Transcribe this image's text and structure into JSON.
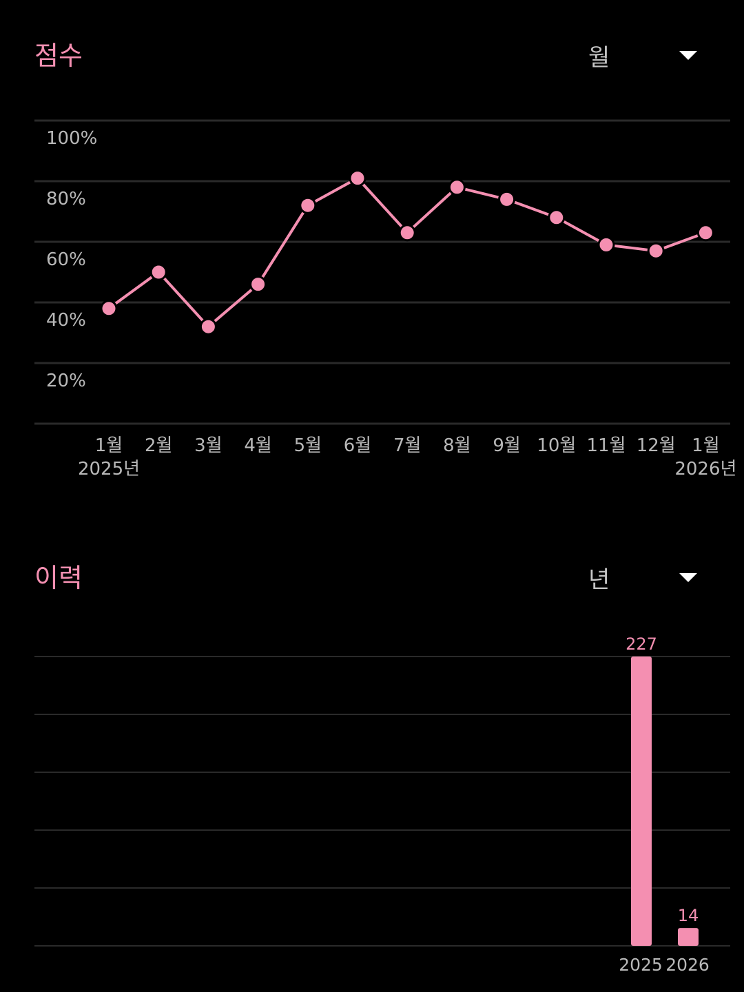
{
  "score_section": {
    "title": "점수",
    "period_selected": "월",
    "dropdown_icon": "triangle-down-icon"
  },
  "history_section": {
    "title": "이력",
    "period_selected": "년",
    "dropdown_icon": "triangle-down-icon"
  },
  "colors": {
    "accent": "#f48fb1",
    "background": "#000000",
    "grid": "#2a2a2a",
    "text_secondary": "#b8b8b8"
  },
  "chart_data": [
    {
      "type": "line",
      "title": "점수",
      "y_ticks": [
        "100%",
        "80%",
        "60%",
        "40%",
        "20%"
      ],
      "ylim": [
        0,
        100
      ],
      "categories": [
        "1월",
        "2월",
        "3월",
        "4월",
        "5월",
        "6월",
        "7월",
        "8월",
        "9월",
        "10월",
        "11월",
        "12월",
        "1월"
      ],
      "year_labels": [
        {
          "index": 0,
          "label": "2025년"
        },
        {
          "index": 12,
          "label": "2026년"
        }
      ],
      "values": [
        38,
        50,
        32,
        46,
        72,
        81,
        63,
        78,
        74,
        68,
        59,
        57,
        63
      ],
      "grid": true,
      "color": "#f48fb1"
    },
    {
      "type": "bar",
      "title": "이력",
      "categories": [
        "2025",
        "2026"
      ],
      "values": [
        227,
        14
      ],
      "data_labels": [
        "227",
        "14"
      ],
      "ylim": [
        0,
        227
      ],
      "grid": true,
      "color": "#f48fb1"
    }
  ]
}
